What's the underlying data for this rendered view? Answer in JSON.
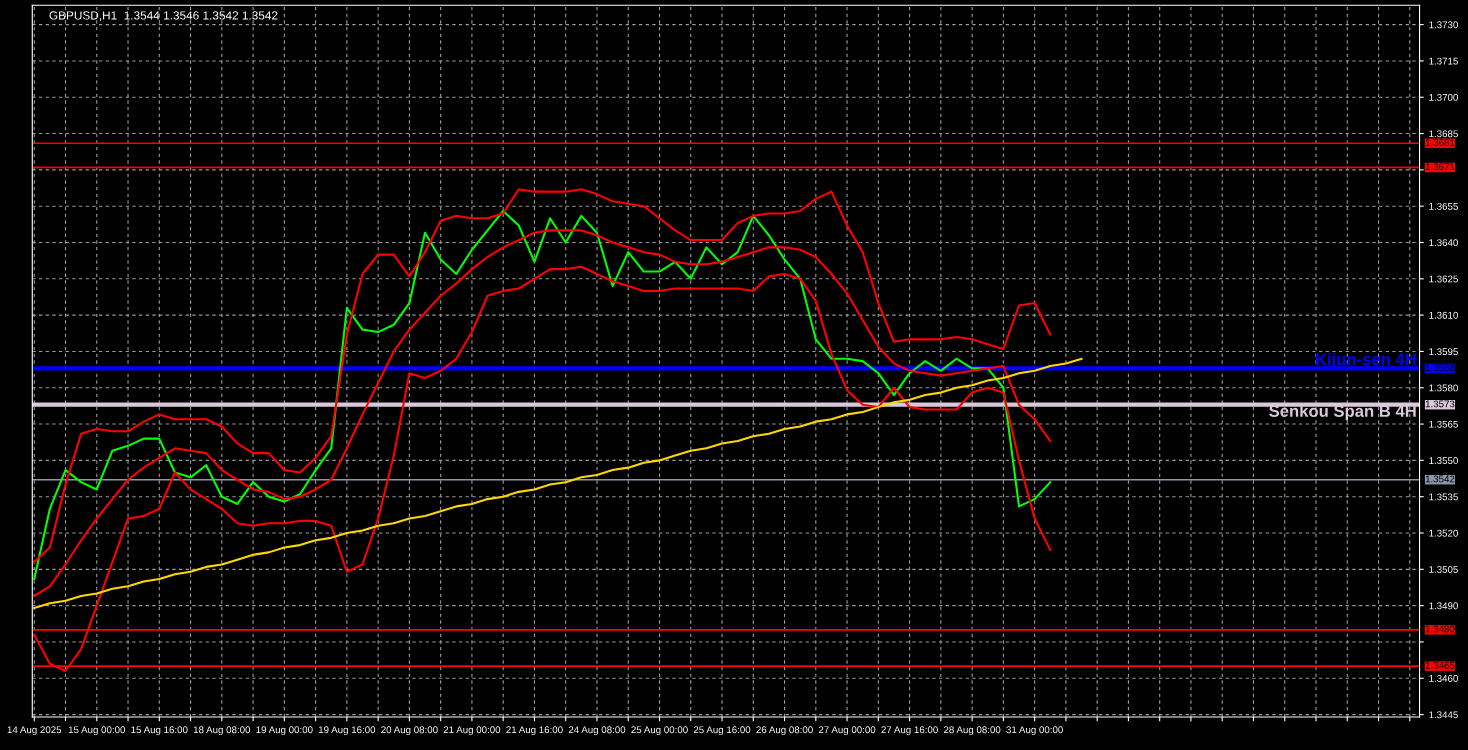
{
  "chart_data": {
    "type": "line",
    "title": "GBPUSD,H1  1.3544 1.3546 1.3542 1.3542",
    "categories": [
      "14 Aug 2025",
      null,
      null,
      null,
      "15 Aug 00:00",
      null,
      null,
      null,
      "15 Aug 16:00",
      null,
      null,
      null,
      "18 Aug 08:00",
      null,
      null,
      null,
      "19 Aug 00:00",
      null,
      null,
      null,
      "19 Aug 16:00",
      null,
      null,
      null,
      "20 Aug 08:00",
      null,
      null,
      null,
      "21 Aug 00:00",
      null,
      null,
      null,
      "21 Aug 16:00",
      null,
      null,
      null,
      "24 Aug 08:00",
      null,
      null,
      null,
      "25 Aug 00:00",
      null,
      null,
      null,
      "25 Aug 16:00",
      null,
      null,
      null,
      "26 Aug 08:00",
      null,
      null,
      null,
      "27 Aug 00:00",
      null,
      null,
      null,
      "27 Aug 16:00",
      null,
      null,
      null,
      "28 Aug 08:00",
      null,
      null,
      null,
      "31 Aug 00:00",
      null,
      null,
      null,
      null,
      null,
      null,
      null,
      null,
      null,
      null,
      null,
      null,
      null,
      null,
      null,
      null,
      null,
      null,
      null,
      null,
      null,
      null,
      null,
      null
    ],
    "ylim": [
      1.3444,
      1.3738
    ],
    "yticks": [
      {
        "value": 1.3445,
        "label": "1.3445"
      },
      {
        "value": 1.346,
        "label": "1.3460"
      },
      {
        "value": 1.3475,
        "label": null
      },
      {
        "value": 1.349,
        "label": "1.3490"
      },
      {
        "value": 1.3505,
        "label": "1.3505"
      },
      {
        "value": 1.352,
        "label": "1.3520"
      },
      {
        "value": 1.3535,
        "label": "1.3535"
      },
      {
        "value": 1.355,
        "label": "1.3550"
      },
      {
        "value": 1.3565,
        "label": "1.3565"
      },
      {
        "value": 1.358,
        "label": "1.3580"
      },
      {
        "value": 1.3595,
        "label": "1.3595"
      },
      {
        "value": 1.361,
        "label": "1.3610"
      },
      {
        "value": 1.3625,
        "label": "1.3625"
      },
      {
        "value": 1.364,
        "label": "1.3640"
      },
      {
        "value": 1.3655,
        "label": "1.3655"
      },
      {
        "value": 1.367,
        "label": null
      },
      {
        "value": 1.3685,
        "label": "1.3685"
      },
      {
        "value": 1.37,
        "label": "1.3700"
      },
      {
        "value": 1.3715,
        "label": "1.3715"
      },
      {
        "value": 1.373,
        "label": "1.3730"
      }
    ],
    "grid": true,
    "series": [
      {
        "color": "#00ff00",
        "values": [
          1.3501,
          1.353,
          1.3546,
          1.3541,
          1.3538,
          1.3554,
          1.3556,
          1.3559,
          1.3559,
          1.3545,
          1.3543,
          1.3548,
          1.3535,
          1.3532,
          1.3541,
          1.3535,
          1.3533,
          1.3536,
          1.3546,
          1.3555,
          1.3613,
          1.3604,
          1.3603,
          1.3606,
          1.3615,
          1.3644,
          1.3633,
          1.3627,
          1.3637,
          1.3645,
          1.3653,
          1.3647,
          1.3632,
          1.365,
          1.364,
          1.3651,
          1.3644,
          1.3622,
          1.3636,
          1.3628,
          1.3628,
          1.3632,
          1.3625,
          1.3638,
          1.3631,
          1.3636,
          1.3651,
          1.3643,
          1.3633,
          1.3625,
          1.36,
          1.3592,
          1.3592,
          1.3591,
          1.3586,
          1.3577,
          1.3586,
          1.3591,
          1.3587,
          1.3592,
          1.3588,
          1.3588,
          1.358,
          1.3531,
          1.3534,
          1.3541,
          null,
          null,
          null,
          null,
          null,
          null,
          null,
          null,
          null,
          null,
          null,
          null,
          null,
          null,
          null,
          null,
          null,
          null,
          null,
          null,
          null,
          null,
          null
        ]
      },
      {
        "color": "#ff0000",
        "values": [
          1.3508,
          1.3514,
          1.354,
          1.3561,
          1.3563,
          1.3562,
          1.3562,
          1.3566,
          1.3569,
          1.3567,
          1.3567,
          1.3567,
          1.3564,
          1.3557,
          1.3553,
          1.3553,
          1.3546,
          1.3545,
          1.3551,
          1.356,
          1.3602,
          1.3627,
          1.3635,
          1.3635,
          1.3626,
          1.3636,
          1.3649,
          1.3651,
          1.365,
          1.365,
          1.3652,
          1.3662,
          1.3661,
          1.3661,
          1.3661,
          1.3662,
          1.366,
          1.3657,
          1.3656,
          1.3655,
          1.365,
          1.3645,
          1.3641,
          1.3641,
          1.3641,
          1.3648,
          1.3651,
          1.3652,
          1.3652,
          1.3653,
          1.3658,
          1.3661,
          1.3647,
          1.3636,
          1.3615,
          1.3599,
          1.36,
          1.36,
          1.36,
          1.3601,
          1.36,
          1.3598,
          1.3596,
          1.3614,
          1.3615,
          1.3602,
          null,
          null,
          null,
          null,
          null,
          null,
          null,
          null,
          null,
          null,
          null,
          null,
          null,
          null,
          null,
          null,
          null,
          null,
          null,
          null,
          null,
          null,
          null
        ]
      },
      {
        "color": "#ff0000",
        "values": [
          1.3494,
          1.3498,
          1.3507,
          1.3517,
          1.3526,
          1.3534,
          1.3542,
          1.3547,
          1.3551,
          1.3555,
          1.3554,
          1.3553,
          1.3546,
          1.3542,
          1.3538,
          1.3537,
          1.3534,
          1.3535,
          1.3538,
          1.3542,
          1.3555,
          1.3569,
          1.3582,
          1.3595,
          1.3604,
          1.3611,
          1.3618,
          1.3623,
          1.3629,
          1.3634,
          1.3638,
          1.3641,
          1.3644,
          1.3645,
          1.3645,
          1.3645,
          1.3643,
          1.364,
          1.3638,
          1.3636,
          1.3635,
          1.3632,
          1.3631,
          1.3631,
          1.3632,
          1.3634,
          1.3636,
          1.3638,
          1.3638,
          1.3637,
          1.3634,
          1.3627,
          1.3619,
          1.3608,
          1.3597,
          1.359,
          1.3587,
          1.3586,
          1.3585,
          1.3586,
          1.3587,
          1.3588,
          1.3589,
          1.3573,
          1.3567,
          1.3558,
          null,
          null,
          null,
          null,
          null,
          null,
          null,
          null,
          null,
          null,
          null,
          null,
          null,
          null,
          null,
          null,
          null,
          null,
          null,
          null,
          null,
          null,
          null
        ]
      },
      {
        "color": "#ff0000",
        "values": [
          1.3478,
          1.3466,
          1.3463,
          1.3472,
          1.349,
          1.3508,
          1.3526,
          1.3527,
          1.353,
          1.3545,
          1.3538,
          1.3534,
          1.353,
          1.3524,
          1.3523,
          1.3524,
          1.3524,
          1.3525,
          1.3525,
          1.3523,
          1.3504,
          1.3507,
          1.3526,
          1.3552,
          1.3586,
          1.3584,
          1.3587,
          1.3592,
          1.3603,
          1.3618,
          1.362,
          1.3621,
          1.3625,
          1.3629,
          1.3629,
          1.363,
          1.3627,
          1.3624,
          1.3622,
          1.362,
          1.362,
          1.3621,
          1.3621,
          1.3621,
          1.3621,
          1.3621,
          1.362,
          1.3626,
          1.3627,
          1.3625,
          1.3616,
          1.3594,
          1.3579,
          1.3573,
          1.3572,
          1.358,
          1.3572,
          1.3571,
          1.3571,
          1.3571,
          1.3578,
          1.358,
          1.3578,
          1.355,
          1.3526,
          1.3513,
          null,
          null,
          null,
          null,
          null,
          null,
          null,
          null,
          null,
          null,
          null,
          null,
          null,
          null,
          null,
          null,
          null,
          null,
          null,
          null,
          null,
          null,
          null
        ]
      },
      {
        "color": "#ffd700",
        "values": [
          1.3489,
          1.3491,
          1.3492,
          1.3494,
          1.3495,
          1.3497,
          1.3498,
          1.35,
          1.3501,
          1.3503,
          1.3504,
          1.3506,
          1.3507,
          1.3509,
          1.3511,
          1.3512,
          1.3514,
          1.3515,
          1.3517,
          1.3518,
          1.352,
          1.3521,
          1.3523,
          1.3524,
          1.3526,
          1.3527,
          1.3529,
          1.3531,
          1.3532,
          1.3534,
          1.3535,
          1.3537,
          1.3538,
          1.354,
          1.3541,
          1.3543,
          1.3544,
          1.3546,
          1.3547,
          1.3549,
          1.355,
          1.3552,
          1.3554,
          1.3555,
          1.3557,
          1.3558,
          1.356,
          1.3561,
          1.3563,
          1.3564,
          1.3566,
          1.3567,
          1.3569,
          1.357,
          1.3572,
          1.3574,
          1.3575,
          1.3577,
          1.3578,
          1.358,
          1.3581,
          1.3583,
          1.3584,
          1.3586,
          1.3587,
          1.3589,
          1.359,
          1.3592,
          null,
          null,
          null,
          null,
          null,
          null,
          null,
          null,
          null,
          null,
          null,
          null,
          null,
          null,
          null,
          null,
          null,
          null,
          null,
          null,
          null
        ]
      }
    ],
    "ref_lines": [
      {
        "axis": "y",
        "value": 1.3681,
        "color": "#ff0000"
      },
      {
        "axis": "y",
        "value": 1.3671,
        "color": "#ff0000"
      },
      {
        "axis": "y",
        "value": 1.3588,
        "color": "#0000ff",
        "label": "Kijun-sen 4H"
      },
      {
        "axis": "y",
        "value": 1.3573,
        "color": "#dcc8dc",
        "label": "Senkou Span B 4H"
      },
      {
        "axis": "y",
        "value": 1.3542,
        "color": "#8a98a8"
      },
      {
        "axis": "y",
        "value": 1.348,
        "color": "#ff0000"
      },
      {
        "axis": "y",
        "value": 1.3465,
        "color": "#ff0000"
      }
    ],
    "annotations": [
      "1.3681",
      "1.3671",
      "1.3588",
      "1.3573",
      "1.3542",
      "1.3480",
      "1.3465"
    ]
  }
}
